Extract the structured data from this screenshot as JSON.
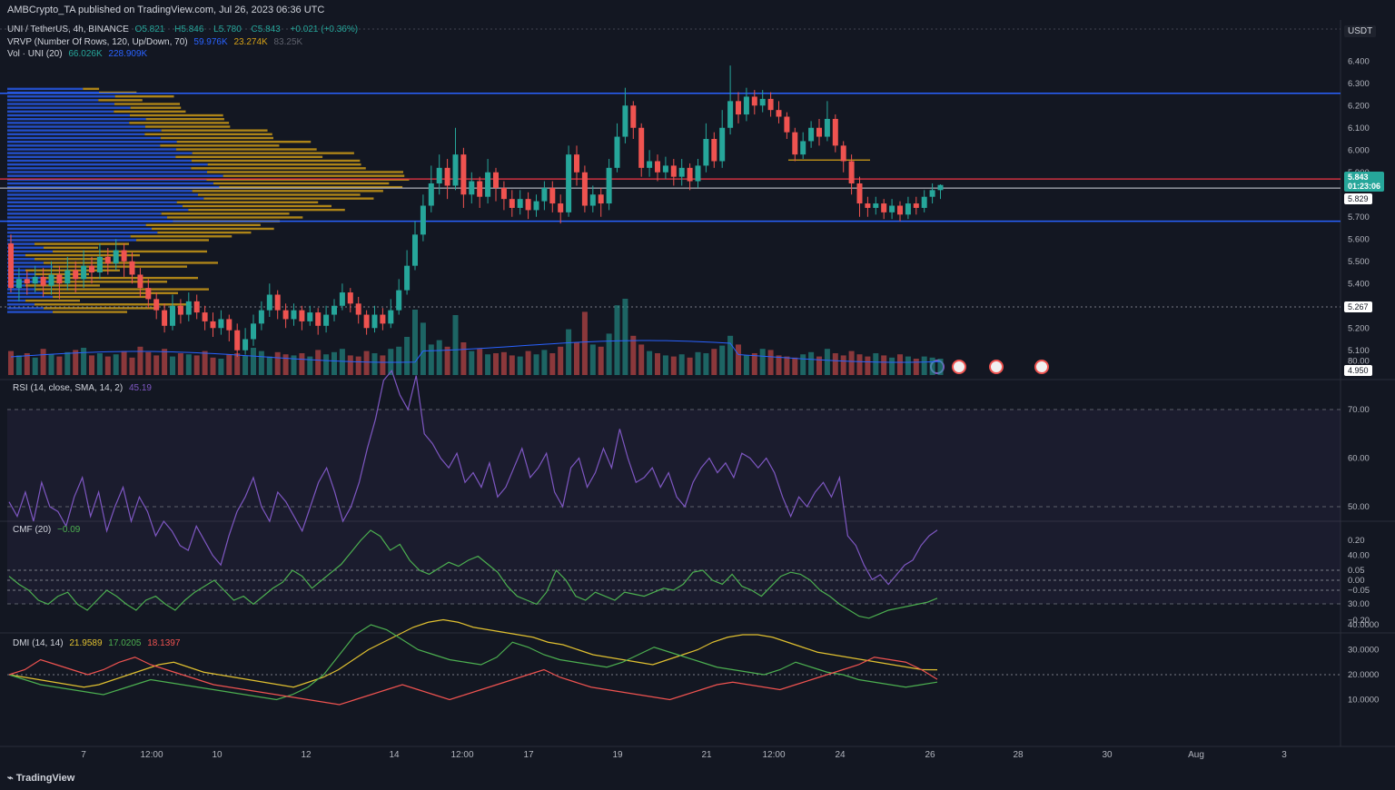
{
  "header": {
    "published": "AMBCrypto_TA published on TradingView.com, Jul 26, 2023 06:36 UTC",
    "symbol": "UNI / TetherUS, 4h, BINANCE",
    "ohlc": {
      "O": "5.821",
      "H": "5.846",
      "L": "5.780",
      "C": "5.843",
      "change": "+0.021 (+0.36%)"
    },
    "vrvp_label": "VRVP (Number Of Rows, 120, Up/Down, 70)",
    "vrvp_values": [
      "59.976K",
      "23.274K",
      "83.25K"
    ],
    "vol_label": "Vol · UNI (20)",
    "vol_values": [
      "66.026K",
      "228.909K"
    ]
  },
  "currency": "USDT",
  "brand": "TradingView",
  "colors": {
    "up": "#26a69a",
    "down": "#ef5350",
    "bg": "#131722",
    "support": "#2962ff",
    "vpoc": "#f23645",
    "vp_up": "#2962ff",
    "vp_down": "#d4a017",
    "rsi": "#7e57c2",
    "cmf": "#4caf50",
    "adx": "#e0c030",
    "dmi_plus": "#4caf50",
    "dmi_minus": "#ef5350"
  },
  "price_axis": {
    "ticks": [
      "6.400",
      "6.300",
      "6.200",
      "6.100",
      "6.000",
      "5.900",
      "5.700",
      "5.600",
      "5.500",
      "5.400",
      "5.300",
      "5.200",
      "5.100"
    ]
  },
  "price_tags": {
    "last": "5.843",
    "countdown": "01:23:06",
    "white_line": "5.829",
    "level": "5.267",
    "low": "4.950"
  },
  "time_axis": [
    "7",
    "12:00",
    "10",
    "12",
    "14",
    "12:00",
    "17",
    "19",
    "21",
    "12:00",
    "24",
    "26",
    "28",
    "30",
    "Aug",
    "3"
  ],
  "rsi": {
    "label": "RSI (14, close, SMA, 14, 2)",
    "value": "45.19",
    "ticks": [
      "80.00",
      "70.00",
      "60.00",
      "50.00",
      "40.00",
      "30.00"
    ]
  },
  "cmf": {
    "label": "CMF (20)",
    "value": "−0.09",
    "ticks": [
      "0.20",
      "0.05",
      "0.00",
      "−0.05",
      "−0.20"
    ]
  },
  "dmi": {
    "label": "DMI (14, 14)",
    "values": [
      "21.9589",
      "17.0205",
      "18.1397"
    ],
    "ticks": [
      "40.0000",
      "30.0000",
      "20.0000",
      "10.0000"
    ]
  },
  "chart_data": {
    "type": "candlestick",
    "title": "UNI / TetherUS, 4h, BINANCE",
    "levels": {
      "resistance": 6.255,
      "support": 5.68,
      "vpoc": 5.87,
      "current": 5.829
    },
    "candles": [
      [
        5.58,
        5.38,
        5.62,
        5.36
      ],
      [
        5.38,
        5.42,
        5.47,
        5.32
      ],
      [
        5.42,
        5.4,
        5.46,
        5.35
      ],
      [
        5.4,
        5.43,
        5.48,
        5.36
      ],
      [
        5.43,
        5.39,
        5.47,
        5.34
      ],
      [
        5.39,
        5.44,
        5.5,
        5.35
      ],
      [
        5.44,
        5.4,
        5.48,
        5.33
      ],
      [
        5.4,
        5.46,
        5.52,
        5.37
      ],
      [
        5.46,
        5.42,
        5.5,
        5.36
      ],
      [
        5.42,
        5.48,
        5.55,
        5.38
      ],
      [
        5.48,
        5.45,
        5.52,
        5.4
      ],
      [
        5.45,
        5.52,
        5.58,
        5.42
      ],
      [
        5.52,
        5.49,
        5.56,
        5.44
      ],
      [
        5.49,
        5.55,
        5.6,
        5.46
      ],
      [
        5.55,
        5.5,
        5.58,
        5.43
      ],
      [
        5.5,
        5.44,
        5.54,
        5.4
      ],
      [
        5.44,
        5.38,
        5.47,
        5.34
      ],
      [
        5.38,
        5.33,
        5.42,
        5.29
      ],
      [
        5.33,
        5.28,
        5.36,
        5.24
      ],
      [
        5.28,
        5.21,
        5.31,
        5.18
      ],
      [
        5.21,
        5.3,
        5.35,
        5.19
      ],
      [
        5.3,
        5.26,
        5.33,
        5.22
      ],
      [
        5.26,
        5.32,
        5.36,
        5.23
      ],
      [
        5.32,
        5.27,
        5.35,
        5.24
      ],
      [
        5.27,
        5.23,
        5.3,
        5.19
      ],
      [
        5.23,
        5.2,
        5.27,
        5.16
      ],
      [
        5.2,
        5.24,
        5.28,
        5.17
      ],
      [
        5.24,
        5.19,
        5.26,
        5.14
      ],
      [
        5.19,
        5.1,
        5.22,
        5.07
      ],
      [
        5.1,
        5.15,
        5.2,
        5.08
      ],
      [
        5.15,
        5.22,
        5.26,
        5.12
      ],
      [
        5.22,
        5.28,
        5.32,
        5.19
      ],
      [
        5.28,
        5.35,
        5.4,
        5.25
      ],
      [
        5.35,
        5.28,
        5.37,
        5.24
      ],
      [
        5.28,
        5.24,
        5.31,
        5.2
      ],
      [
        5.24,
        5.28,
        5.31,
        5.21
      ],
      [
        5.28,
        5.23,
        5.3,
        5.19
      ],
      [
        5.23,
        5.27,
        5.3,
        5.21
      ],
      [
        5.27,
        5.21,
        5.29,
        5.17
      ],
      [
        5.21,
        5.26,
        5.3,
        5.18
      ],
      [
        5.26,
        5.3,
        5.33,
        5.23
      ],
      [
        5.3,
        5.36,
        5.4,
        5.28
      ],
      [
        5.36,
        5.31,
        5.38,
        5.27
      ],
      [
        5.31,
        5.26,
        5.34,
        5.22
      ],
      [
        5.26,
        5.2,
        5.28,
        5.17
      ],
      [
        5.2,
        5.26,
        5.3,
        5.18
      ],
      [
        5.26,
        5.22,
        5.29,
        5.19
      ],
      [
        5.22,
        5.28,
        5.33,
        5.2
      ],
      [
        5.28,
        5.37,
        5.42,
        5.26
      ],
      [
        5.37,
        5.48,
        5.55,
        5.35
      ],
      [
        5.48,
        5.62,
        5.68,
        5.46
      ],
      [
        5.62,
        5.75,
        5.8,
        5.59
      ],
      [
        5.75,
        5.85,
        5.93,
        5.72
      ],
      [
        5.85,
        5.92,
        5.98,
        5.8
      ],
      [
        5.92,
        5.84,
        5.96,
        5.78
      ],
      [
        5.84,
        5.98,
        6.1,
        5.82
      ],
      [
        5.98,
        5.8,
        6.01,
        5.74
      ],
      [
        5.8,
        5.86,
        5.9,
        5.76
      ],
      [
        5.86,
        5.79,
        5.88,
        5.74
      ],
      [
        5.79,
        5.9,
        5.96,
        5.76
      ],
      [
        5.9,
        5.83,
        5.92,
        5.77
      ],
      [
        5.83,
        5.78,
        5.86,
        5.73
      ],
      [
        5.78,
        5.74,
        5.82,
        5.7
      ],
      [
        5.74,
        5.78,
        5.82,
        5.71
      ],
      [
        5.78,
        5.73,
        5.81,
        5.69
      ],
      [
        5.73,
        5.77,
        5.8,
        5.7
      ],
      [
        5.77,
        5.83,
        5.86,
        5.73
      ],
      [
        5.83,
        5.76,
        5.86,
        5.72
      ],
      [
        5.76,
        5.72,
        5.8,
        5.67
      ],
      [
        5.72,
        5.98,
        6.02,
        5.7
      ],
      [
        5.98,
        5.9,
        6.02,
        5.84
      ],
      [
        5.9,
        5.75,
        5.93,
        5.72
      ],
      [
        5.75,
        5.8,
        5.84,
        5.72
      ],
      [
        5.8,
        5.76,
        5.83,
        5.7
      ],
      [
        5.76,
        5.92,
        5.96,
        5.73
      ],
      [
        5.92,
        6.06,
        6.12,
        5.9
      ],
      [
        6.06,
        6.2,
        6.28,
        6.03
      ],
      [
        6.2,
        6.1,
        6.22,
        6.05
      ],
      [
        6.1,
        5.92,
        6.12,
        5.88
      ],
      [
        5.92,
        5.95,
        6.0,
        5.88
      ],
      [
        5.95,
        5.9,
        5.98,
        5.86
      ],
      [
        5.9,
        5.93,
        5.97,
        5.87
      ],
      [
        5.93,
        5.88,
        5.96,
        5.84
      ],
      [
        5.88,
        5.92,
        5.96,
        5.84
      ],
      [
        5.92,
        5.86,
        5.94,
        5.82
      ],
      [
        5.86,
        5.93,
        5.96,
        5.83
      ],
      [
        5.93,
        6.05,
        6.12,
        5.9
      ],
      [
        6.05,
        5.95,
        6.08,
        5.92
      ],
      [
        5.95,
        6.1,
        6.18,
        5.92
      ],
      [
        6.1,
        6.22,
        6.38,
        6.07
      ],
      [
        6.22,
        6.16,
        6.26,
        6.12
      ],
      [
        6.16,
        6.24,
        6.28,
        6.13
      ],
      [
        6.24,
        6.2,
        6.27,
        6.16
      ],
      [
        6.2,
        6.23,
        6.27,
        6.17
      ],
      [
        6.23,
        6.18,
        6.26,
        6.15
      ],
      [
        6.18,
        6.15,
        6.22,
        6.12
      ],
      [
        6.15,
        6.08,
        6.17,
        6.05
      ],
      [
        6.08,
        5.98,
        6.1,
        5.95
      ],
      [
        5.98,
        6.04,
        6.08,
        5.96
      ],
      [
        6.04,
        6.1,
        6.13,
        6.01
      ],
      [
        6.1,
        6.06,
        6.14,
        6.02
      ],
      [
        6.06,
        6.14,
        6.22,
        6.04
      ],
      [
        6.14,
        6.02,
        6.16,
        5.99
      ],
      [
        6.02,
        5.95,
        6.04,
        5.9
      ],
      [
        5.95,
        5.85,
        5.98,
        5.8
      ],
      [
        5.85,
        5.76,
        5.88,
        5.7
      ],
      [
        5.76,
        5.74,
        5.79,
        5.7
      ],
      [
        5.74,
        5.76,
        5.79,
        5.71
      ],
      [
        5.76,
        5.72,
        5.78,
        5.69
      ],
      [
        5.72,
        5.75,
        5.78,
        5.69
      ],
      [
        5.75,
        5.71,
        5.77,
        5.68
      ],
      [
        5.71,
        5.76,
        5.79,
        5.69
      ],
      [
        5.76,
        5.74,
        5.79,
        5.71
      ],
      [
        5.74,
        5.79,
        5.82,
        5.72
      ],
      [
        5.79,
        5.82,
        5.85,
        5.76
      ],
      [
        5.82,
        5.843,
        5.846,
        5.78
      ]
    ],
    "volume": [
      22,
      18,
      20,
      16,
      24,
      19,
      17,
      21,
      23,
      25,
      18,
      20,
      17,
      19,
      22,
      16,
      26,
      21,
      18,
      24,
      17,
      20,
      19,
      18,
      22,
      16,
      15,
      19,
      20,
      18,
      25,
      22,
      17,
      21,
      19,
      18,
      20,
      17,
      23,
      19,
      21,
      24,
      18,
      17,
      22,
      20,
      18,
      24,
      26,
      35,
      60,
      48,
      28,
      32,
      26,
      55,
      30,
      22,
      24,
      19,
      20,
      21,
      18,
      17,
      22,
      19,
      23,
      20,
      26,
      42,
      30,
      58,
      28,
      26,
      38,
      64,
      70,
      36,
      28,
      22,
      20,
      18,
      17,
      19,
      16,
      21,
      20,
      24,
      27,
      36,
      28,
      18,
      20,
      24,
      23,
      18,
      17,
      16,
      19,
      21,
      17,
      24,
      20,
      18,
      22,
      19,
      17,
      20,
      18,
      16,
      19,
      17,
      15,
      17,
      16,
      15
    ],
    "rsi_values": [
      51,
      48,
      53,
      47,
      55,
      50,
      49,
      46,
      52,
      56,
      48,
      53,
      45,
      50,
      54,
      47,
      52,
      49,
      44,
      47,
      45,
      42,
      41,
      46,
      43,
      40,
      38,
      44,
      49,
      52,
      56,
      50,
      47,
      53,
      51,
      48,
      45,
      50,
      55,
      58,
      53,
      47,
      50,
      55,
      62,
      68,
      76,
      78,
      73,
      70,
      77,
      65,
      63,
      60,
      58,
      61,
      55,
      57,
      54,
      59,
      52,
      54,
      58,
      62,
      56,
      58,
      61,
      53,
      50,
      58,
      60,
      54,
      57,
      62,
      58,
      66,
      60,
      55,
      56,
      58,
      54,
      57,
      52,
      50,
      55,
      58,
      60,
      57,
      59,
      56,
      61,
      60,
      58,
      60,
      57,
      52,
      48,
      52,
      50,
      53,
      55,
      52,
      56,
      44,
      42,
      38,
      35,
      36,
      34,
      36,
      38,
      39,
      42,
      44,
      45.19
    ],
    "cmf_values": [
      0.02,
      -0.02,
      -0.05,
      -0.1,
      -0.12,
      -0.08,
      -0.06,
      -0.12,
      -0.15,
      -0.1,
      -0.05,
      -0.08,
      -0.12,
      -0.15,
      -0.1,
      -0.08,
      -0.12,
      -0.15,
      -0.1,
      -0.06,
      -0.03,
      0.0,
      -0.05,
      -0.1,
      -0.08,
      -0.12,
      -0.08,
      -0.04,
      -0.01,
      0.05,
      0.02,
      -0.04,
      0.0,
      0.04,
      0.08,
      0.14,
      0.2,
      0.25,
      0.22,
      0.15,
      0.18,
      0.1,
      0.05,
      0.03,
      0.06,
      0.09,
      0.07,
      0.1,
      0.12,
      0.08,
      0.04,
      -0.03,
      -0.08,
      -0.1,
      -0.12,
      -0.06,
      0.05,
      0.0,
      -0.08,
      -0.1,
      -0.06,
      -0.08,
      -0.1,
      -0.06,
      -0.07,
      -0.08,
      -0.06,
      -0.04,
      -0.05,
      -0.02,
      0.04,
      0.05,
      0.0,
      -0.02,
      0.03,
      -0.03,
      -0.05,
      -0.08,
      -0.03,
      0.02,
      0.04,
      0.03,
      0.0,
      -0.05,
      -0.08,
      -0.12,
      -0.15,
      -0.18,
      -0.19,
      -0.17,
      -0.15,
      -0.14,
      -0.13,
      -0.12,
      -0.11,
      -0.09
    ],
    "dmi_adx": [
      20,
      19,
      18,
      17,
      16,
      15,
      16,
      18,
      20,
      22,
      24,
      25,
      23,
      21,
      20,
      19,
      18,
      17,
      16,
      15,
      17,
      19,
      22,
      26,
      30,
      33,
      36,
      39,
      41,
      42,
      41,
      39,
      38,
      37,
      36,
      35,
      33,
      32,
      30,
      28,
      27,
      26,
      25,
      24,
      26,
      28,
      30,
      33,
      35,
      36,
      36,
      35,
      33,
      31,
      29,
      28,
      27,
      26,
      25,
      24,
      23,
      22,
      21.96
    ],
    "dmi_plus": [
      20,
      18,
      16,
      15,
      14,
      13,
      12,
      14,
      16,
      18,
      17,
      16,
      15,
      14,
      13,
      12,
      11,
      10,
      12,
      15,
      20,
      28,
      36,
      40,
      38,
      34,
      30,
      28,
      26,
      25,
      24,
      27,
      33,
      31,
      28,
      26,
      25,
      24,
      23,
      25,
      28,
      31,
      29,
      27,
      25,
      23,
      22,
      21,
      20,
      22,
      25,
      23,
      21,
      20,
      18,
      17,
      16,
      15,
      16,
      17.02
    ],
    "dmi_minus": [
      20,
      22,
      26,
      24,
      22,
      20,
      22,
      25,
      27,
      24,
      22,
      20,
      18,
      16,
      15,
      14,
      13,
      12,
      11,
      10,
      9,
      8,
      10,
      12,
      14,
      16,
      14,
      12,
      10,
      12,
      14,
      16,
      18,
      20,
      22,
      19,
      17,
      15,
      14,
      13,
      12,
      11,
      10,
      12,
      14,
      16,
      17,
      16,
      15,
      14,
      16,
      18,
      20,
      22,
      24,
      27,
      26,
      25,
      22,
      18.14
    ]
  }
}
